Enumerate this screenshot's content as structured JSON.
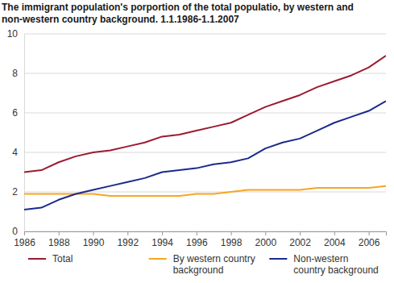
{
  "chart_data": {
    "type": "line",
    "title": "The immigrant population's porportion of the total populatio, by western and non-western country background. 1.1.1986-1.1.2007",
    "x": [
      1986,
      1987,
      1988,
      1989,
      1990,
      1991,
      1992,
      1993,
      1994,
      1995,
      1996,
      1997,
      1998,
      1999,
      2000,
      2001,
      2002,
      2003,
      2004,
      2005,
      2006,
      2007
    ],
    "series": [
      {
        "name": "Total",
        "color": "#9b1b30",
        "values": [
          3.0,
          3.1,
          3.5,
          3.8,
          4.0,
          4.1,
          4.3,
          4.5,
          4.8,
          4.9,
          5.1,
          5.3,
          5.5,
          5.9,
          6.3,
          6.6,
          6.9,
          7.3,
          7.6,
          7.9,
          8.3,
          8.9
        ]
      },
      {
        "name": "By western country background",
        "color": "#f5a623",
        "values": [
          1.9,
          1.9,
          1.9,
          1.9,
          1.9,
          1.8,
          1.8,
          1.8,
          1.8,
          1.8,
          1.9,
          1.9,
          2.0,
          2.1,
          2.1,
          2.1,
          2.1,
          2.2,
          2.2,
          2.2,
          2.2,
          2.3
        ]
      },
      {
        "name": "Non-western country background",
        "color": "#1c2a8c",
        "values": [
          1.1,
          1.2,
          1.6,
          1.9,
          2.1,
          2.3,
          2.5,
          2.7,
          3.0,
          3.1,
          3.2,
          3.4,
          3.5,
          3.7,
          4.2,
          4.5,
          4.7,
          5.1,
          5.5,
          5.8,
          6.1,
          6.6
        ]
      }
    ],
    "xlim": [
      1986,
      2007
    ],
    "xticks": [
      1986,
      1988,
      1990,
      1992,
      1994,
      1996,
      1998,
      2000,
      2002,
      2004,
      2006
    ],
    "ylim": [
      0,
      10
    ],
    "yticks": [
      0,
      2,
      4,
      6,
      8,
      10
    ],
    "grid": true,
    "legend": "bottom"
  }
}
